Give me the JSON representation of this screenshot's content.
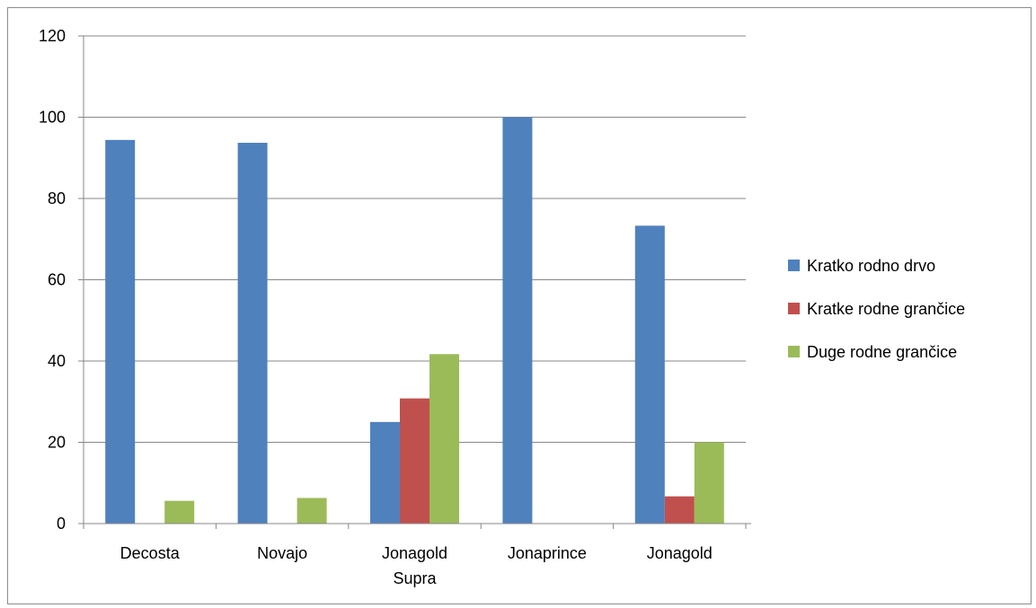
{
  "chart_data": {
    "type": "bar",
    "categories": [
      [
        "Decosta"
      ],
      [
        "Novajo"
      ],
      [
        "Jonagold",
        "Supra"
      ],
      [
        "Jonaprince"
      ],
      [
        "Jonagold"
      ]
    ],
    "series": [
      {
        "name": "Kratko rodno drvo",
        "color": "#4f81bd",
        "values": [
          94.4,
          93.7,
          25,
          100,
          73.3
        ]
      },
      {
        "name": "Kratke rodne grančice",
        "color": "#c0504d",
        "values": [
          0,
          0,
          30.8,
          0,
          6.7
        ]
      },
      {
        "name": "Duge rodne grančice",
        "color": "#9bbb59",
        "values": [
          5.6,
          6.3,
          41.7,
          0,
          20
        ]
      }
    ],
    "yticks": [
      "0",
      "20",
      "40",
      "60",
      "80",
      "100",
      "120"
    ],
    "ylim": [
      0,
      120
    ],
    "grid": true,
    "legend_position": "right"
  }
}
